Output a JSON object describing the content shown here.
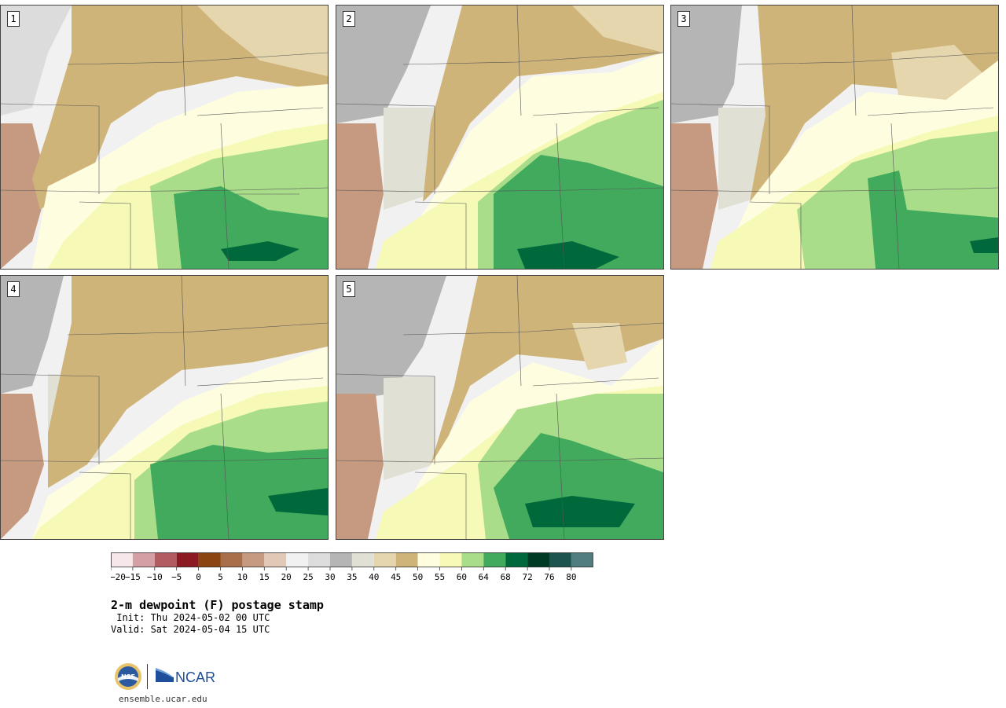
{
  "panels": [
    {
      "label": "1"
    },
    {
      "label": "2"
    },
    {
      "label": "3"
    },
    {
      "label": "4"
    },
    {
      "label": "5"
    }
  ],
  "colorbar": {
    "colors": [
      "#f6e8ea",
      "#d4a0a6",
      "#b25c62",
      "#8b1a22",
      "#8a4510",
      "#a8704a",
      "#c59a80",
      "#e2c8b6",
      "#f1f1f1",
      "#dddddd",
      "#b5b5b5",
      "#e0e0d4",
      "#e6d6ae",
      "#cfb47a",
      "#fffde0",
      "#f7f9b6",
      "#a9dd8a",
      "#41aa5c",
      "#00693c",
      "#003b26",
      "#1e5450",
      "#4f7d80"
    ],
    "ticks": [
      "-20",
      "-15",
      "-10",
      "-5",
      "0",
      "5",
      "10",
      "15",
      "20",
      "25",
      "30",
      "35",
      "40",
      "45",
      "50",
      "55",
      "60",
      "64",
      "68",
      "72",
      "76",
      "80"
    ]
  },
  "title": "2-m dewpoint (F) postage stamp",
  "init": " Init: Thu 2024-05-02 00 UTC",
  "valid": "Valid: Sat 2024-05-04 15 UTC",
  "logos": {
    "nsf": "NSF",
    "ncar": "NCAR"
  },
  "site": "ensemble.ucar.edu"
}
